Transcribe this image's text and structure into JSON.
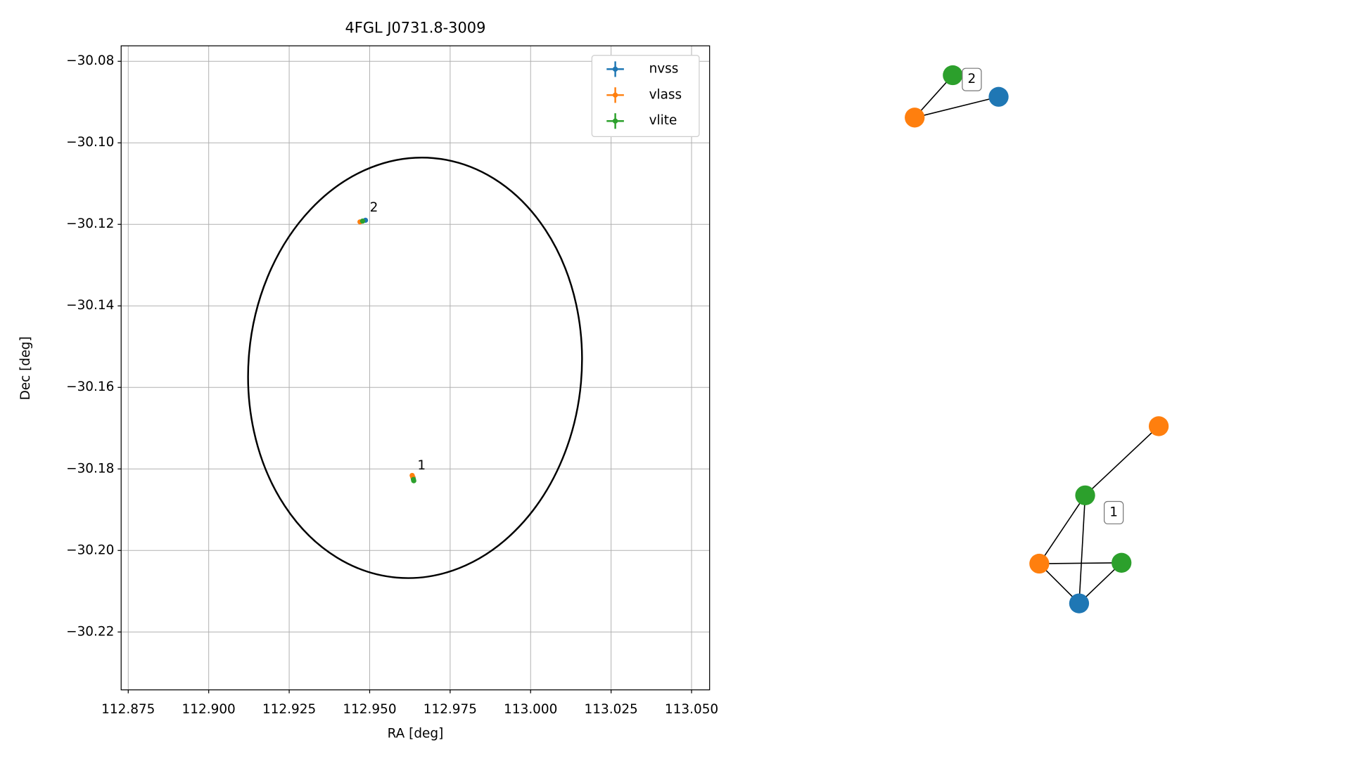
{
  "chart_data": [
    {
      "type": "scatter",
      "title": "4FGL J0731.8-3009",
      "x_label": "RA [deg]",
      "y_label": "Dec [deg]",
      "xlim": [
        112.8728,
        113.0556
      ],
      "ylim": [
        -30.2342,
        -30.0762
      ],
      "xticks": [
        112.875,
        {
          "value": 112.9,
          "label": "112.900"
        },
        112.925,
        {
          "value": 112.95,
          "label": "112.950"
        },
        112.975,
        {
          "value": 113.0,
          "label": "113.000"
        },
        113.025,
        {
          "value": 113.05,
          "label": "113.050"
        }
      ],
      "yticks": [
        {
          "value": -30.08,
          "label": "−30.08"
        },
        {
          "value": -30.1,
          "label": "−30.10"
        },
        {
          "value": -30.12,
          "label": "−30.12"
        },
        {
          "value": -30.14,
          "label": "−30.14"
        },
        {
          "value": -30.16,
          "label": "−30.16"
        },
        {
          "value": -30.18,
          "label": "−30.18"
        },
        {
          "value": -30.2,
          "label": "−30.20"
        },
        {
          "value": -30.22,
          "label": "−30.22"
        }
      ],
      "grid": true,
      "legend": "upper right",
      "series": [
        {
          "name": "nvss",
          "color": "#1f77b4",
          "x": [
            112.9487,
            112.9635
          ],
          "values": [
            -30.119,
            -30.1822
          ]
        },
        {
          "name": "vlass",
          "color": "#ff7f0e",
          "x": [
            112.947,
            112.9632,
            112.9634
          ],
          "values": [
            -30.1194,
            -30.1816,
            -30.182
          ]
        },
        {
          "name": "vlite",
          "color": "#2ca02c",
          "x": [
            112.9478,
            112.9637,
            112.9636
          ],
          "values": [
            -30.1192,
            -30.1829,
            -30.1826
          ]
        }
      ],
      "ellipse": {
        "x": 112.9641,
        "y": -30.1552,
        "width": 0.1035,
        "height": 0.1033,
        "angle": -5
      },
      "annotations": [
        {
          "text": "2",
          "x": 112.9487,
          "y": -30.119
        },
        {
          "text": "1",
          "x": 112.9635,
          "y": -30.1822
        }
      ]
    },
    {
      "type": "network",
      "nodes": [
        {
          "color": "#2ca02c"
        },
        {
          "color": "#ff7f0e"
        },
        {
          "color": "#1f77b4"
        },
        {
          "color": "#ff7f0e"
        },
        {
          "color": "#2ca02c"
        },
        {
          "color": "#ff7f0e"
        },
        {
          "color": "#2ca02c"
        },
        {
          "color": "#1f77b4"
        }
      ],
      "edges": [
        [
          0,
          1
        ],
        [
          1,
          2
        ],
        [
          3,
          4
        ],
        [
          4,
          5
        ],
        [
          4,
          7
        ],
        [
          5,
          6
        ],
        [
          5,
          7
        ],
        [
          6,
          7
        ]
      ],
      "labels": [
        {
          "text": "2"
        },
        {
          "text": "1"
        }
      ]
    }
  ]
}
